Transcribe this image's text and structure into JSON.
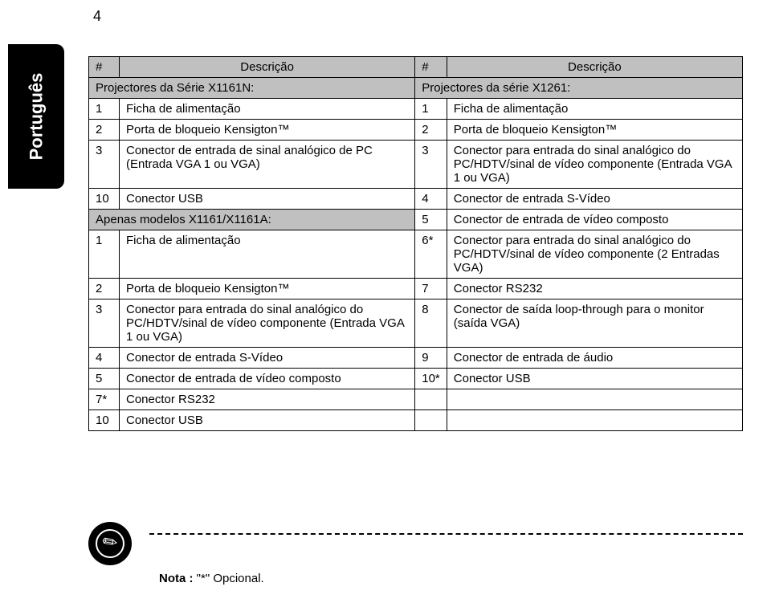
{
  "page_number": "4",
  "side_tab": "Português",
  "table": {
    "header": [
      "#",
      "Descrição",
      "#",
      "Descrição"
    ],
    "rows": [
      {
        "type": "sub",
        "left_span": "Projectores da Série X1161N:",
        "right_span": "Projectores da série X1261:"
      },
      {
        "type": "data",
        "c1": "1",
        "c2": "Ficha de alimentação",
        "c3": "1",
        "c4": "Ficha de alimentação"
      },
      {
        "type": "data",
        "c1": "2",
        "c2": "Porta de bloqueio Kensigton™",
        "c3": "2",
        "c4": "Porta de bloqueio Kensigton™"
      },
      {
        "type": "data",
        "c1": "3",
        "c2": "Conector de entrada de sinal analógico de PC (Entrada VGA 1 ou VGA)",
        "c3": "3",
        "c4": "Conector para entrada do sinal analógico do PC/HDTV/sinal de vídeo componente (Entrada VGA 1 ou VGA)"
      },
      {
        "type": "data",
        "c1": "10",
        "c2": "Conector USB",
        "c3": "4",
        "c4": "Conector de entrada S-Vídeo"
      },
      {
        "type": "sub-left",
        "left_span": "Apenas modelos X1161/X1161A:",
        "c3": "5",
        "c4": "Conector de entrada de vídeo composto"
      },
      {
        "type": "data",
        "c1": "1",
        "c2": "Ficha de alimentação",
        "c3": "6*",
        "c4": "Conector para entrada do sinal analógico do PC/HDTV/sinal de vídeo componente (2 Entradas VGA)"
      },
      {
        "type": "data",
        "c1": "2",
        "c2": "Porta de bloqueio Kensigton™",
        "c3": "7",
        "c4": "Conector RS232"
      },
      {
        "type": "data",
        "c1": "3",
        "c2": "Conector para entrada do sinal analógico do PC/HDTV/sinal de vídeo componente (Entrada VGA 1 ou VGA)",
        "c3": "8",
        "c4": "Conector de saída loop-through para o monitor (saída VGA)"
      },
      {
        "type": "data",
        "c1": "4",
        "c2": "Conector de entrada S-Vídeo",
        "c3": "9",
        "c4": "Conector de entrada de áudio"
      },
      {
        "type": "data",
        "c1": "5",
        "c2": "Conector de entrada de vídeo composto",
        "c3": "10*",
        "c4": "Conector USB"
      },
      {
        "type": "data",
        "c1": "7*",
        "c2": "Conector RS232",
        "c3": "",
        "c4": ""
      },
      {
        "type": "data",
        "c1": "10",
        "c2": "Conector USB",
        "c3": "",
        "c4": ""
      }
    ]
  },
  "note_label": "Nota :",
  "note_text": " \"*\" Opcional."
}
